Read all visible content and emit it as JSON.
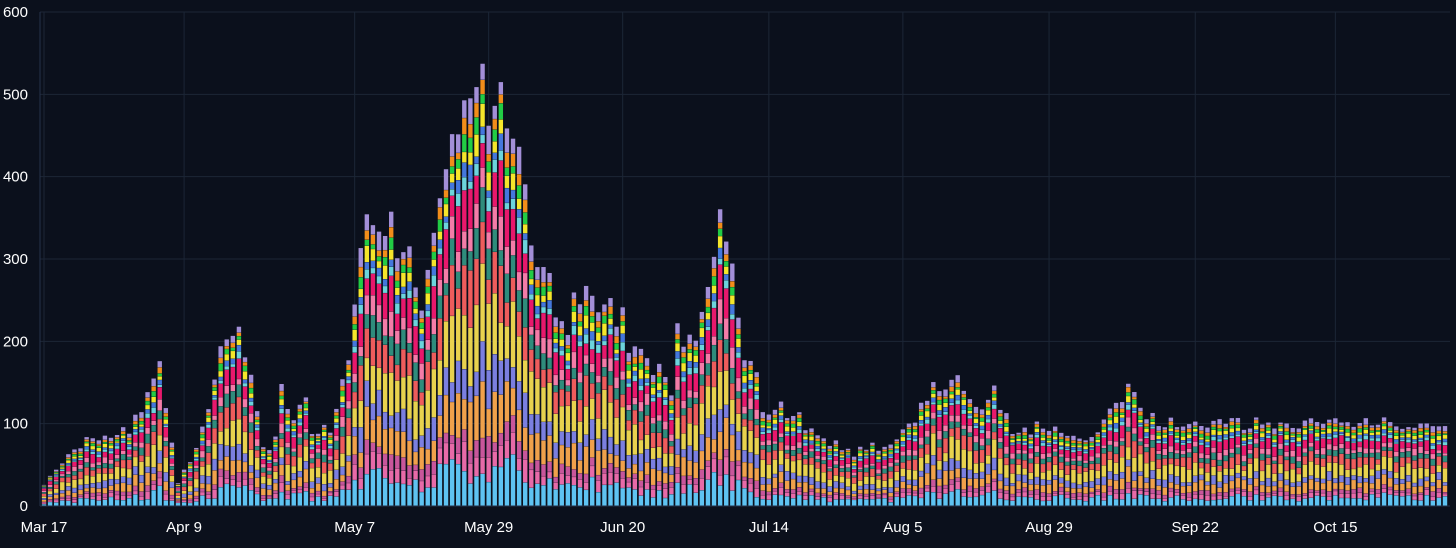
{
  "chart_data": {
    "type": "bar",
    "stacked": true,
    "title": "",
    "xlabel": "",
    "ylabel": "",
    "ylim": [
      0,
      600
    ],
    "yticks": [
      0,
      100,
      200,
      300,
      400,
      500,
      600
    ],
    "xtick_labels": [
      "Mar 17",
      "Apr 9",
      "May 7",
      "May 29",
      "Jun 20",
      "Jul 14",
      "Aug 5",
      "Aug 29",
      "Sep 22",
      "Oct 15"
    ],
    "xtick_day_index": [
      0,
      23,
      51,
      73,
      95,
      119,
      141,
      165,
      189,
      212
    ],
    "grid": true,
    "legend": "none",
    "start_date": "Mar 17",
    "day_count": 231,
    "totals_anchors_note": "daily stacked totals (estimated), listed as [day_index, total]",
    "totals_anchors": [
      [
        0,
        25
      ],
      [
        2,
        45
      ],
      [
        4,
        60
      ],
      [
        6,
        75
      ],
      [
        8,
        80
      ],
      [
        10,
        80
      ],
      [
        12,
        85
      ],
      [
        14,
        95
      ],
      [
        16,
        120
      ],
      [
        17,
        140
      ],
      [
        18,
        150
      ],
      [
        19,
        167
      ],
      [
        20,
        120
      ],
      [
        21,
        80
      ],
      [
        22,
        30
      ],
      [
        23,
        45
      ],
      [
        24,
        55
      ],
      [
        25,
        70
      ],
      [
        26,
        95
      ],
      [
        27,
        120
      ],
      [
        28,
        155
      ],
      [
        29,
        195
      ],
      [
        30,
        205
      ],
      [
        31,
        213
      ],
      [
        32,
        205
      ],
      [
        33,
        185
      ],
      [
        34,
        155
      ],
      [
        35,
        125
      ],
      [
        36,
        70
      ],
      [
        37,
        65
      ],
      [
        38,
        90
      ],
      [
        39,
        142
      ],
      [
        40,
        110
      ],
      [
        41,
        100
      ],
      [
        42,
        125
      ],
      [
        43,
        130
      ],
      [
        44,
        85
      ],
      [
        45,
        90
      ],
      [
        46,
        95
      ],
      [
        47,
        85
      ],
      [
        48,
        125
      ],
      [
        49,
        150
      ],
      [
        50,
        185
      ],
      [
        51,
        235
      ],
      [
        52,
        330
      ],
      [
        53,
        330
      ],
      [
        54,
        330
      ],
      [
        55,
        310
      ],
      [
        56,
        345
      ],
      [
        57,
        385
      ],
      [
        58,
        300
      ],
      [
        59,
        305
      ],
      [
        60,
        295
      ],
      [
        61,
        260
      ],
      [
        62,
        255
      ],
      [
        63,
        300
      ],
      [
        64,
        350
      ],
      [
        65,
        365
      ],
      [
        66,
        405
      ],
      [
        67,
        450
      ],
      [
        68,
        480
      ],
      [
        69,
        485
      ],
      [
        70,
        485
      ],
      [
        71,
        475
      ],
      [
        72,
        510
      ],
      [
        73,
        500
      ],
      [
        74,
        525
      ],
      [
        75,
        540
      ],
      [
        76,
        440
      ],
      [
        77,
        430
      ],
      [
        78,
        430
      ],
      [
        79,
        400
      ],
      [
        80,
        320
      ],
      [
        81,
        295
      ],
      [
        82,
        290
      ],
      [
        83,
        280
      ],
      [
        84,
        245
      ],
      [
        85,
        230
      ],
      [
        86,
        215
      ],
      [
        87,
        255
      ],
      [
        88,
        240
      ],
      [
        89,
        285
      ],
      [
        90,
        270
      ],
      [
        91,
        240
      ],
      [
        92,
        230
      ],
      [
        93,
        245
      ],
      [
        94,
        230
      ],
      [
        95,
        225
      ],
      [
        96,
        200
      ],
      [
        97,
        195
      ],
      [
        98,
        190
      ],
      [
        99,
        175
      ],
      [
        100,
        165
      ],
      [
        101,
        165
      ],
      [
        102,
        160
      ],
      [
        103,
        145
      ],
      [
        104,
        220
      ],
      [
        105,
        200
      ],
      [
        106,
        195
      ],
      [
        107,
        190
      ],
      [
        108,
        250
      ],
      [
        109,
        270
      ],
      [
        110,
        290
      ],
      [
        111,
        360
      ],
      [
        112,
        340
      ],
      [
        113,
        275
      ],
      [
        114,
        245
      ],
      [
        115,
        180
      ],
      [
        116,
        175
      ],
      [
        117,
        160
      ],
      [
        118,
        120
      ],
      [
        119,
        120
      ],
      [
        120,
        125
      ],
      [
        121,
        120
      ],
      [
        122,
        115
      ],
      [
        123,
        110
      ],
      [
        124,
        110
      ],
      [
        125,
        100
      ],
      [
        126,
        95
      ],
      [
        127,
        90
      ],
      [
        128,
        80
      ],
      [
        129,
        75
      ],
      [
        130,
        75
      ],
      [
        131,
        70
      ],
      [
        132,
        70
      ],
      [
        133,
        65
      ],
      [
        134,
        70
      ],
      [
        135,
        70
      ],
      [
        136,
        72
      ],
      [
        137,
        70
      ],
      [
        138,
        75
      ],
      [
        139,
        80
      ],
      [
        140,
        85
      ],
      [
        141,
        90
      ],
      [
        142,
        100
      ],
      [
        143,
        110
      ],
      [
        144,
        120
      ],
      [
        145,
        130
      ],
      [
        146,
        140
      ],
      [
        147,
        145
      ],
      [
        148,
        140
      ],
      [
        149,
        145
      ],
      [
        150,
        160
      ],
      [
        151,
        140
      ],
      [
        152,
        130
      ],
      [
        153,
        125
      ],
      [
        154,
        120
      ],
      [
        155,
        130
      ],
      [
        156,
        140
      ],
      [
        157,
        115
      ],
      [
        158,
        105
      ],
      [
        159,
        95
      ],
      [
        160,
        90
      ],
      [
        161,
        90
      ],
      [
        162,
        85
      ],
      [
        163,
        100
      ],
      [
        164,
        95
      ],
      [
        165,
        95
      ],
      [
        166,
        95
      ],
      [
        167,
        90
      ],
      [
        168,
        90
      ],
      [
        169,
        85
      ],
      [
        170,
        80
      ],
      [
        171,
        80
      ],
      [
        172,
        85
      ],
      [
        173,
        90
      ],
      [
        174,
        100
      ],
      [
        175,
        110
      ],
      [
        176,
        125
      ],
      [
        177,
        135
      ],
      [
        178,
        145
      ],
      [
        179,
        135
      ],
      [
        180,
        120
      ],
      [
        181,
        110
      ],
      [
        182,
        105
      ],
      [
        183,
        100
      ],
      [
        184,
        95
      ],
      [
        185,
        100
      ],
      [
        186,
        100
      ]
    ],
    "series_colors": [
      "#5ec3f2",
      "#e76aa8",
      "#c8569b",
      "#f0a14b",
      "#7b7fe0",
      "#e8d24e",
      "#ee5c5c",
      "#2f8c7c",
      "#f47ca8",
      "#e8186c",
      "#6cd4dc",
      "#4477dd",
      "#f5e62b",
      "#22cc44",
      "#f28d1a",
      "#a38fd8"
    ]
  }
}
